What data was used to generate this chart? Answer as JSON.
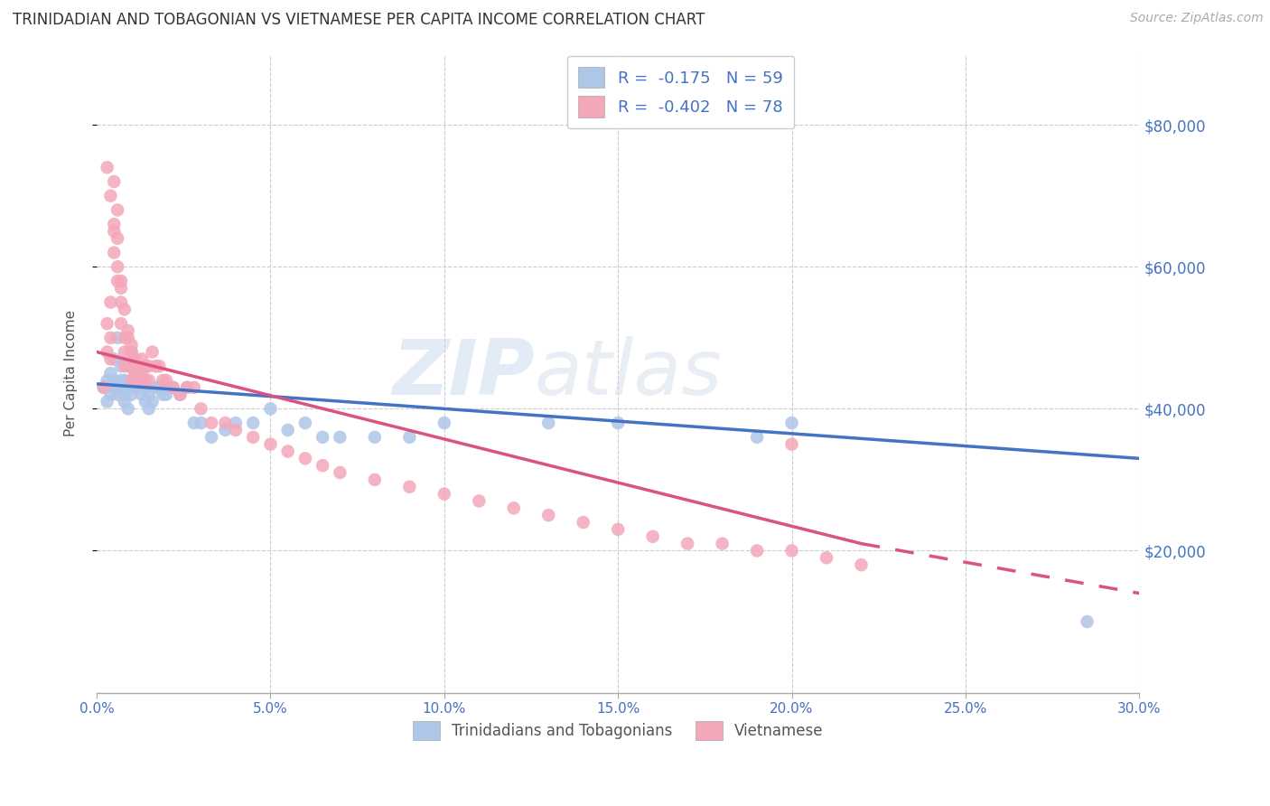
{
  "title": "TRINIDADIAN AND TOBAGONIAN VS VIETNAMESE PER CAPITA INCOME CORRELATION CHART",
  "source": "Source: ZipAtlas.com",
  "ylabel": "Per Capita Income",
  "xlim": [
    0.0,
    0.3
  ],
  "ylim": [
    0,
    90000
  ],
  "xtick_labels": [
    "0.0%",
    "5.0%",
    "10.0%",
    "15.0%",
    "20.0%",
    "25.0%",
    "30.0%"
  ],
  "xtick_values": [
    0.0,
    0.05,
    0.1,
    0.15,
    0.2,
    0.25,
    0.3
  ],
  "ytick_labels": [
    "$20,000",
    "$40,000",
    "$60,000",
    "$80,000"
  ],
  "ytick_values": [
    20000,
    40000,
    60000,
    80000
  ],
  "legend_labels": [
    "Trinidadians and Tobagonians",
    "Vietnamese"
  ],
  "blue_R": "-0.175",
  "blue_N": "59",
  "pink_R": "-0.402",
  "pink_N": "78",
  "blue_color": "#aec6e8",
  "pink_color": "#f4a7b9",
  "blue_line_color": "#4472c4",
  "pink_line_color": "#d9547e",
  "watermark_zip": "ZIP",
  "watermark_atlas": "atlas",
  "blue_line_x0": 0.0,
  "blue_line_y0": 43500,
  "blue_line_x1": 0.3,
  "blue_line_y1": 33000,
  "pink_line_x0": 0.0,
  "pink_line_y0": 48000,
  "pink_line_x1_solid": 0.22,
  "pink_line_y1_solid": 21000,
  "pink_line_x1_dash": 0.3,
  "pink_line_y1_dash": 14000,
  "blue_scatter_x": [
    0.002,
    0.003,
    0.003,
    0.004,
    0.004,
    0.005,
    0.005,
    0.005,
    0.006,
    0.006,
    0.006,
    0.007,
    0.007,
    0.007,
    0.008,
    0.008,
    0.008,
    0.009,
    0.009,
    0.01,
    0.01,
    0.01,
    0.011,
    0.011,
    0.012,
    0.012,
    0.013,
    0.013,
    0.014,
    0.014,
    0.015,
    0.015,
    0.016,
    0.017,
    0.018,
    0.019,
    0.02,
    0.022,
    0.024,
    0.026,
    0.028,
    0.03,
    0.033,
    0.037,
    0.04,
    0.045,
    0.05,
    0.055,
    0.06,
    0.065,
    0.07,
    0.08,
    0.09,
    0.1,
    0.13,
    0.15,
    0.19,
    0.2,
    0.285
  ],
  "blue_scatter_y": [
    43000,
    41000,
    44000,
    42000,
    45000,
    43000,
    44000,
    47000,
    43000,
    42000,
    50000,
    46000,
    44000,
    43000,
    44000,
    42000,
    41000,
    43000,
    40000,
    44000,
    42000,
    48000,
    45000,
    43000,
    45000,
    44000,
    43000,
    42000,
    41000,
    43000,
    42000,
    40000,
    41000,
    43000,
    43000,
    42000,
    42000,
    43000,
    42000,
    43000,
    38000,
    38000,
    36000,
    37000,
    38000,
    38000,
    40000,
    37000,
    38000,
    36000,
    36000,
    36000,
    36000,
    38000,
    38000,
    38000,
    36000,
    38000,
    10000
  ],
  "pink_scatter_x": [
    0.002,
    0.003,
    0.003,
    0.004,
    0.004,
    0.004,
    0.005,
    0.005,
    0.005,
    0.006,
    0.006,
    0.006,
    0.007,
    0.007,
    0.007,
    0.008,
    0.008,
    0.008,
    0.009,
    0.009,
    0.01,
    0.01,
    0.01,
    0.011,
    0.011,
    0.012,
    0.012,
    0.013,
    0.013,
    0.014,
    0.014,
    0.015,
    0.015,
    0.016,
    0.017,
    0.018,
    0.019,
    0.02,
    0.022,
    0.024,
    0.026,
    0.028,
    0.03,
    0.033,
    0.037,
    0.04,
    0.045,
    0.05,
    0.055,
    0.06,
    0.065,
    0.07,
    0.08,
    0.09,
    0.1,
    0.11,
    0.12,
    0.13,
    0.14,
    0.15,
    0.16,
    0.17,
    0.18,
    0.19,
    0.2,
    0.21,
    0.22,
    0.003,
    0.004,
    0.005,
    0.006,
    0.007,
    0.008,
    0.009,
    0.01,
    0.011,
    0.012,
    0.2
  ],
  "pink_scatter_y": [
    43000,
    52000,
    48000,
    55000,
    50000,
    47000,
    65000,
    62000,
    72000,
    68000,
    64000,
    58000,
    58000,
    55000,
    52000,
    50000,
    48000,
    46000,
    50000,
    46000,
    48000,
    46000,
    44000,
    47000,
    45000,
    46000,
    44000,
    47000,
    45000,
    46000,
    44000,
    46000,
    44000,
    48000,
    46000,
    46000,
    44000,
    44000,
    43000,
    42000,
    43000,
    43000,
    40000,
    38000,
    38000,
    37000,
    36000,
    35000,
    34000,
    33000,
    32000,
    31000,
    30000,
    29000,
    28000,
    27000,
    26000,
    25000,
    24000,
    23000,
    22000,
    21000,
    21000,
    20000,
    20000,
    19000,
    18000,
    74000,
    70000,
    66000,
    60000,
    57000,
    54000,
    51000,
    49000,
    47000,
    46000,
    35000
  ]
}
